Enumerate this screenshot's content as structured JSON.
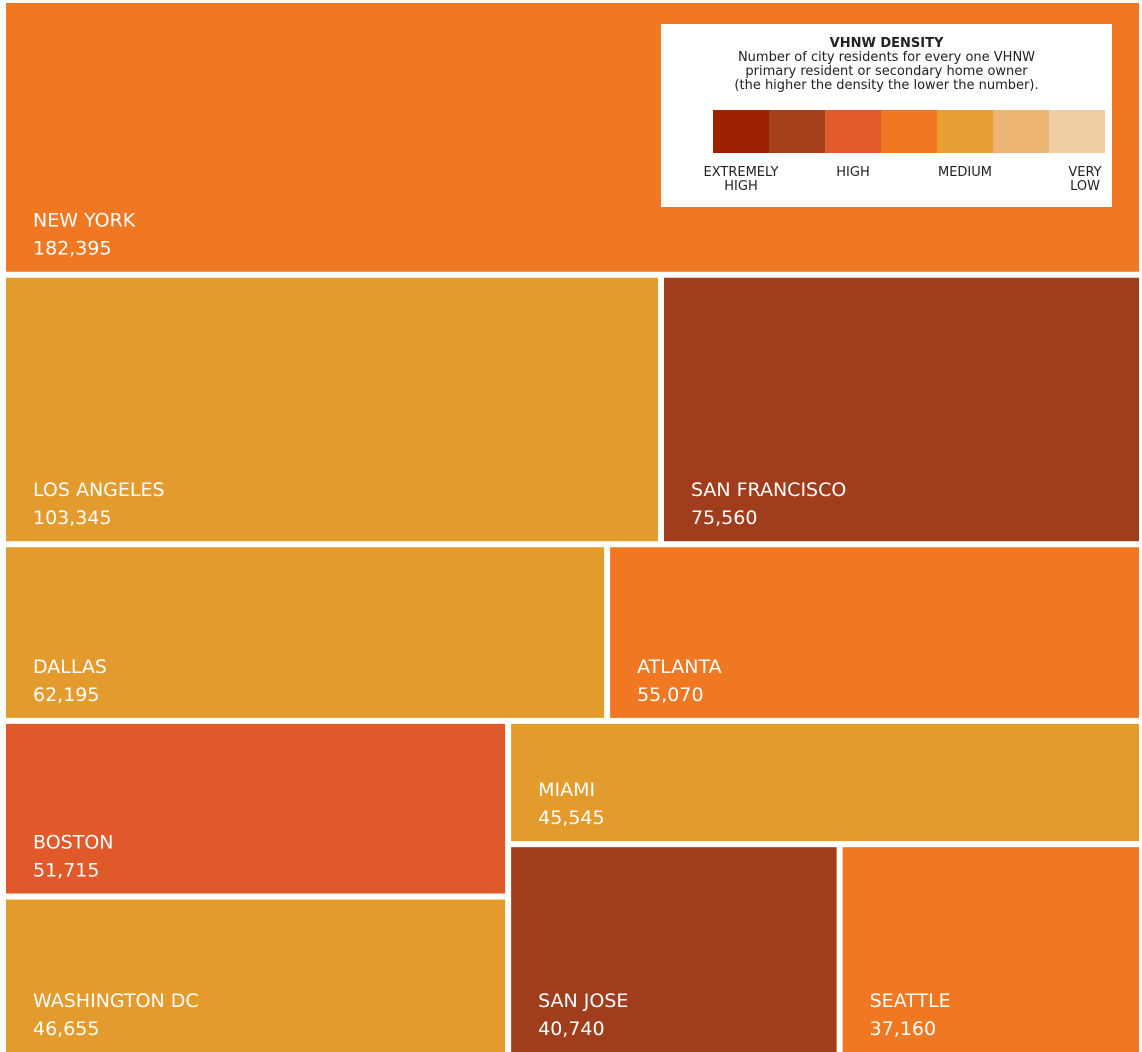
{
  "chart_data": {
    "type": "treemap",
    "categories": [
      "NEW YORK",
      "LOS ANGELES",
      "SAN FRANCISCO",
      "DALLAS",
      "ATLANTA",
      "BOSTON",
      "WASHINGTON DC",
      "MIAMI",
      "SAN JOSE",
      "SEATTLE"
    ],
    "values": [
      182395,
      103345,
      75560,
      62195,
      55070,
      51715,
      46655,
      45545,
      40740,
      37160
    ],
    "value_labels": [
      "182,395",
      "103,345",
      "75,560",
      "62,195",
      "55,070",
      "51,715",
      "46,655",
      "45,545",
      "40,740",
      "37,160"
    ],
    "colors": [
      "#F07823",
      "#E39B2D",
      "#A03D1C",
      "#E39B2D",
      "#F07823",
      "#E0592A",
      "#E39B2D",
      "#E39B2D",
      "#A03D1C",
      "#F07823"
    ],
    "legend": {
      "title": "VHNW DENSITY",
      "subtitle": [
        "Number of city residents for every one VHNW",
        "primary resident or secondary home owner",
        "(the higher the density the lower the number)."
      ],
      "colors": [
        "#9E2000",
        "#A5401C",
        "#E05A2A",
        "#F07823",
        "#E89E32",
        "#ECB574",
        "#F0CDA2"
      ],
      "labels": [
        "EXTREMELY HIGH",
        "HIGH",
        "MEDIUM",
        "VERY LOW"
      ]
    }
  }
}
